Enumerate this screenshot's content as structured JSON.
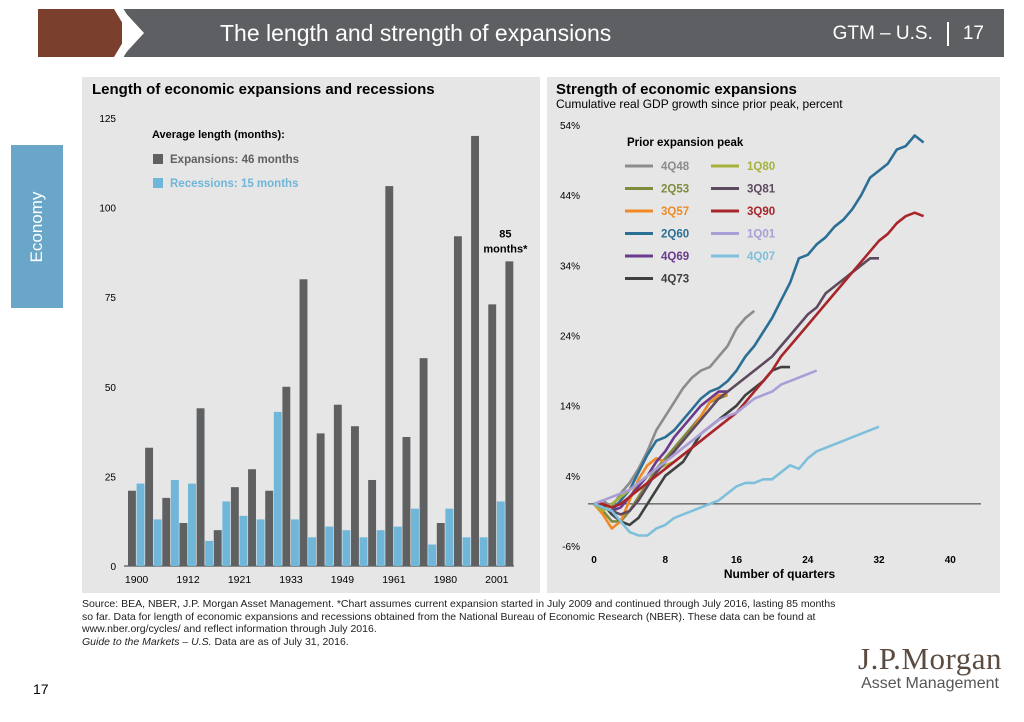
{
  "header": {
    "title": "The length and strength of expansions",
    "tag": "GTM – U.S.",
    "page": "17"
  },
  "side_tab": "Economy",
  "footer": {
    "source": "Source: BEA, NBER, J.P. Morgan Asset Management. *Chart assumes current expansion started in July 2009 and continued through July 2016, lasting 85 months so far. Data for length of economic expansions and recessions obtained from the National Bureau of Economic Research (NBER). These data can be found at www.nber.org/cycles/ and reflect information through July 2016.",
    "guide_italic": "Guide to the Markets – U.S.",
    "guide_rest": " Data are as of July 31, 2016.",
    "page_number": "17",
    "logo_line1": "J.P.Morgan",
    "logo_line2": "Asset Management"
  },
  "colors": {
    "expansion": "#5f6062",
    "recession": "#6fb6d8",
    "panel_bg": "#e6e6e7",
    "header_bg": "#5d5f62",
    "header_accent": "#7a3f2d",
    "side_tab": "#6aa6c8"
  },
  "chart_data": [
    {
      "type": "bar",
      "title": "Length of economic expansions and recessions",
      "legend_title": "Average length (months):",
      "ylim": [
        0,
        125
      ],
      "yticks": [
        0,
        25,
        50,
        75,
        100,
        125
      ],
      "x_tick_labels": [
        "1900",
        "1912",
        "1921",
        "1933",
        "1949",
        "1961",
        "1980",
        "2001"
      ],
      "series": [
        {
          "name": "Expansions: 46 months",
          "color": "#5f6062",
          "values": [
            21,
            33,
            19,
            12,
            44,
            10,
            22,
            27,
            21,
            50,
            80,
            37,
            45,
            39,
            24,
            106,
            36,
            58,
            12,
            92,
            120,
            73,
            85
          ]
        },
        {
          "name": "Recessions: 15 months",
          "color": "#6fb6d8",
          "values": [
            23,
            13,
            24,
            23,
            7,
            18,
            14,
            13,
            43,
            13,
            8,
            11,
            10,
            8,
            10,
            11,
            16,
            6,
            16,
            8,
            8,
            18
          ]
        }
      ],
      "annotation": {
        "line1": "85",
        "line2": "months*"
      }
    },
    {
      "type": "line",
      "title": "Strength of economic expansions",
      "subtitle": "Cumulative real GDP growth since prior peak, percent",
      "xlabel": "Number of quarters",
      "legend_title": "Prior expansion peak",
      "xlim": [
        0,
        43
      ],
      "ylim": [
        -6,
        54
      ],
      "xticks": [
        0,
        8,
        16,
        24,
        32,
        40
      ],
      "yticks": [
        -6,
        4,
        14,
        24,
        34,
        44,
        54
      ],
      "ytick_suffix": "%",
      "series": [
        {
          "name": "4Q48",
          "color": "#8c8c8c",
          "values": [
            0,
            0.5,
            -0.5,
            1.5,
            3,
            5,
            7.5,
            10.5,
            12.5,
            14.5,
            16.5,
            18,
            19,
            19.5,
            21,
            22.5,
            25,
            26.5,
            27.5
          ]
        },
        {
          "name": "2Q53",
          "color": "#7f8c3e",
          "values": [
            0,
            -1,
            -2.5,
            -2.5,
            -1,
            1,
            3,
            5,
            6.5,
            8,
            9.5,
            11,
            12.5,
            14.5,
            15,
            15.5
          ]
        },
        {
          "name": "3Q57",
          "color": "#f08a24",
          "values": [
            0,
            -1.5,
            -3.5,
            -2.5,
            0.5,
            3.5,
            5.5,
            6.5,
            6,
            7.5,
            9,
            10.5,
            12.5,
            14.5,
            15.5,
            15.5
          ]
        },
        {
          "name": "2Q60",
          "color": "#2b6f95",
          "values": [
            0,
            -0.5,
            -1,
            0.5,
            2,
            4.5,
            7,
            9,
            9.5,
            10.5,
            12,
            13.5,
            15,
            16,
            16.5,
            17.5,
            19,
            21,
            22.5,
            24.5,
            26.5,
            29,
            31.5,
            35,
            35.5,
            37,
            38,
            39.5,
            40.5,
            42,
            44,
            46.5,
            47.5,
            48.5,
            50.5,
            51,
            52.5,
            51.5
          ]
        },
        {
          "name": "4Q69",
          "color": "#6b3a8c",
          "values": [
            0,
            -0.5,
            -1,
            -0.5,
            1,
            2.5,
            4,
            6,
            7.5,
            9.5,
            11,
            12.5,
            14,
            15,
            16,
            16
          ]
        },
        {
          "name": "4Q73",
          "color": "#404040",
          "values": [
            0,
            0,
            -1.5,
            -2.5,
            -3,
            -2,
            0,
            2,
            4,
            5,
            6,
            8,
            10,
            11,
            12,
            13,
            14,
            15.5,
            16.5,
            17.5,
            19,
            19.5,
            19.5
          ]
        },
        {
          "name": "1Q80",
          "color": "#a6b23a",
          "values": [
            0,
            -1,
            0,
            1,
            2,
            3,
            4,
            5,
            5.5,
            6,
            7
          ]
        },
        {
          "name": "3Q81",
          "color": "#5e4a5e",
          "values": [
            0,
            -0.5,
            -1,
            -1.5,
            -1,
            0.5,
            2.5,
            4.5,
            6,
            7.5,
            9,
            10.5,
            12,
            13.5,
            15,
            16,
            17,
            18,
            19,
            20,
            21,
            22.5,
            24,
            25.5,
            27,
            28,
            30,
            31,
            32,
            33,
            34,
            35,
            35
          ]
        },
        {
          "name": "3Q90",
          "color": "#a8252a",
          "values": [
            0,
            0,
            -0.5,
            0,
            1,
            2,
            3,
            4,
            5,
            6,
            7,
            8,
            9,
            10,
            11,
            12,
            13,
            14.5,
            16,
            17.5,
            19,
            21,
            22.5,
            24,
            25.5,
            27,
            28.5,
            30,
            31.5,
            33,
            34.5,
            36,
            37.5,
            38.5,
            40,
            41,
            41.5,
            41
          ]
        },
        {
          "name": "1Q01",
          "color": "#a99ed6",
          "values": [
            0,
            0.5,
            1,
            1.5,
            2,
            3,
            4,
            5,
            6,
            7,
            8,
            9,
            10,
            11,
            12,
            12.5,
            13,
            14,
            15,
            15.5,
            16,
            17,
            17.5,
            18,
            18.5,
            19
          ]
        },
        {
          "name": "4Q07",
          "color": "#7ec0db",
          "values": [
            0,
            -0.5,
            -1,
            -2.5,
            -4,
            -4.5,
            -4.5,
            -3.5,
            -3,
            -2,
            -1.5,
            -1,
            -0.5,
            0,
            0.5,
            1.5,
            2.5,
            3,
            3,
            3.5,
            3.5,
            4.5,
            5.5,
            5,
            6.5,
            7.5,
            8,
            8.5,
            9,
            9.5,
            10,
            10.5,
            11
          ]
        }
      ]
    }
  ]
}
